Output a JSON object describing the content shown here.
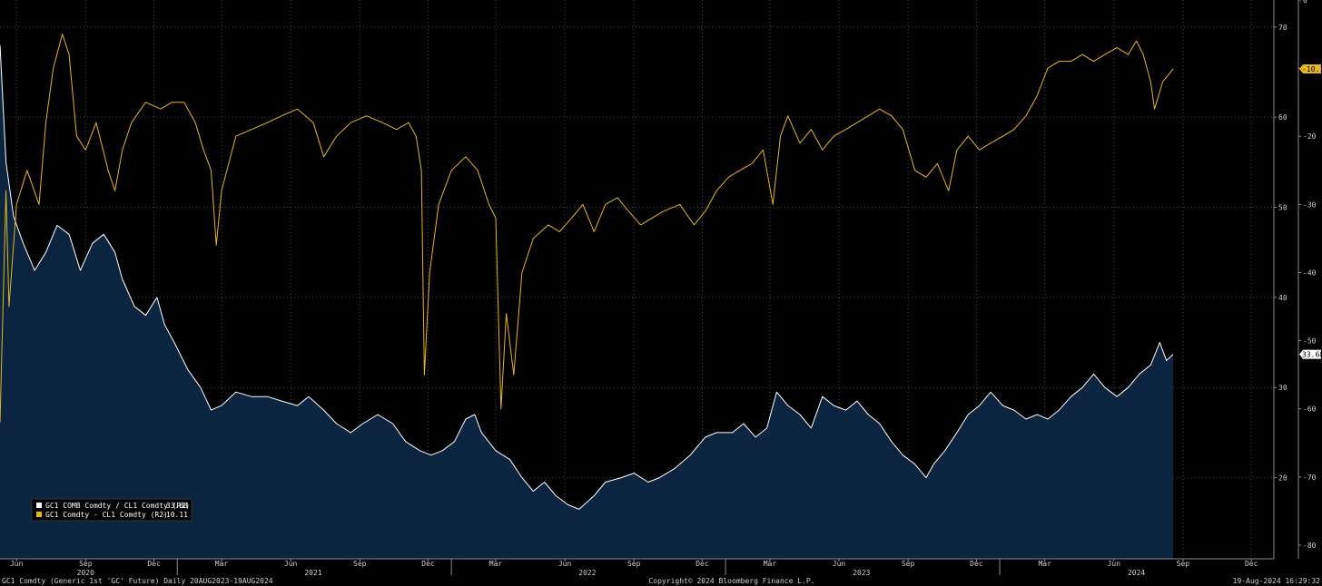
{
  "chart_data": {
    "type": "line",
    "x_range": [
      "2020-05-10",
      "2024-12-31"
    ],
    "x_month_ticks": [
      {
        "label": "Jun",
        "date": "2020-06-01"
      },
      {
        "label": "Sep",
        "date": "2020-09-01"
      },
      {
        "label": "Dec",
        "date": "2020-12-01"
      },
      {
        "label": "Mar",
        "date": "2021-03-01"
      },
      {
        "label": "Jun",
        "date": "2021-06-01"
      },
      {
        "label": "Sep",
        "date": "2021-09-01"
      },
      {
        "label": "Dec",
        "date": "2021-12-01"
      },
      {
        "label": "Mar",
        "date": "2022-03-01"
      },
      {
        "label": "Jun",
        "date": "2022-06-01"
      },
      {
        "label": "Sep",
        "date": "2022-09-01"
      },
      {
        "label": "Dec",
        "date": "2022-12-01"
      },
      {
        "label": "Mar",
        "date": "2023-03-01"
      },
      {
        "label": "Jun",
        "date": "2023-06-01"
      },
      {
        "label": "Sep",
        "date": "2023-09-01"
      },
      {
        "label": "Dec",
        "date": "2023-12-01"
      },
      {
        "label": "Mar",
        "date": "2024-03-01"
      },
      {
        "label": "Jun",
        "date": "2024-06-01"
      },
      {
        "label": "Sep",
        "date": "2024-09-01"
      },
      {
        "label": "Dec",
        "date": "2024-12-01"
      }
    ],
    "x_year_ticks": [
      {
        "label": "2020",
        "date": "2020-09-01"
      },
      {
        "label": "2021",
        "date": "2021-07-01"
      },
      {
        "label": "2022",
        "date": "2022-07-01"
      },
      {
        "label": "2023",
        "date": "2023-07-01"
      },
      {
        "label": "2024",
        "date": "2024-07-01"
      }
    ],
    "year_boundaries": [
      "2021-01-01",
      "2022-01-01",
      "2023-01-01",
      "2024-01-01"
    ],
    "axis_r1": {
      "range": [
        11,
        73
      ],
      "ticks": [
        20,
        30,
        40,
        50,
        60,
        70
      ]
    },
    "axis_r2": {
      "range": [
        -82,
        0
      ],
      "ticks": [
        0,
        -10,
        -20,
        -30,
        -40,
        -50,
        -60,
        -70,
        -80
      ]
    },
    "grid": true,
    "legend_position": "bottom-left",
    "series": [
      {
        "name": "GC1 COMB Comdty / CL1 Comdty (R1)",
        "last_value": "33.68",
        "axis": "R1",
        "style": "area",
        "color": "#ffffff",
        "fill": "#0b2440",
        "points": [
          [
            "2020-05-10",
            68
          ],
          [
            "2020-05-18",
            55
          ],
          [
            "2020-05-28",
            49
          ],
          [
            "2020-06-10",
            46
          ],
          [
            "2020-06-25",
            43
          ],
          [
            "2020-07-10",
            45
          ],
          [
            "2020-07-25",
            48
          ],
          [
            "2020-08-10",
            47
          ],
          [
            "2020-08-25",
            43
          ],
          [
            "2020-09-10",
            46
          ],
          [
            "2020-09-25",
            47
          ],
          [
            "2020-10-10",
            45
          ],
          [
            "2020-10-20",
            42
          ],
          [
            "2020-11-05",
            39
          ],
          [
            "2020-11-20",
            38
          ],
          [
            "2020-12-05",
            40
          ],
          [
            "2020-12-15",
            37
          ],
          [
            "2020-12-28",
            35
          ],
          [
            "2021-01-15",
            32
          ],
          [
            "2021-02-01",
            30
          ],
          [
            "2021-02-15",
            27.5
          ],
          [
            "2021-03-01",
            28
          ],
          [
            "2021-03-20",
            29.5
          ],
          [
            "2021-04-10",
            29
          ],
          [
            "2021-05-01",
            29
          ],
          [
            "2021-05-20",
            28.5
          ],
          [
            "2021-06-10",
            28
          ],
          [
            "2021-06-25",
            29
          ],
          [
            "2021-07-15",
            27.5
          ],
          [
            "2021-08-01",
            26
          ],
          [
            "2021-08-20",
            25
          ],
          [
            "2021-09-05",
            26
          ],
          [
            "2021-09-25",
            27
          ],
          [
            "2021-10-15",
            26
          ],
          [
            "2021-11-01",
            24
          ],
          [
            "2021-11-20",
            23
          ],
          [
            "2021-12-05",
            22.5
          ],
          [
            "2021-12-20",
            23
          ],
          [
            "2022-01-05",
            24
          ],
          [
            "2022-01-20",
            26.5
          ],
          [
            "2022-02-01",
            27
          ],
          [
            "2022-02-10",
            25
          ],
          [
            "2022-03-01",
            23
          ],
          [
            "2022-03-20",
            22
          ],
          [
            "2022-04-05",
            20
          ],
          [
            "2022-04-20",
            18.5
          ],
          [
            "2022-05-05",
            19.5
          ],
          [
            "2022-05-20",
            18
          ],
          [
            "2022-06-05",
            17
          ],
          [
            "2022-06-20",
            16.5
          ],
          [
            "2022-07-10",
            18
          ],
          [
            "2022-07-25",
            19.5
          ],
          [
            "2022-08-15",
            20
          ],
          [
            "2022-09-01",
            20.5
          ],
          [
            "2022-09-20",
            19.5
          ],
          [
            "2022-10-05",
            20
          ],
          [
            "2022-10-25",
            21
          ],
          [
            "2022-11-15",
            22.5
          ],
          [
            "2022-12-05",
            24.5
          ],
          [
            "2022-12-20",
            25
          ],
          [
            "2023-01-10",
            25
          ],
          [
            "2023-01-25",
            26
          ],
          [
            "2023-02-10",
            24.5
          ],
          [
            "2023-02-25",
            25.5
          ],
          [
            "2023-03-10",
            29.5
          ],
          [
            "2023-03-25",
            28
          ],
          [
            "2023-04-10",
            27
          ],
          [
            "2023-04-25",
            25.5
          ],
          [
            "2023-05-10",
            29
          ],
          [
            "2023-05-25",
            28
          ],
          [
            "2023-06-10",
            27.5
          ],
          [
            "2023-06-25",
            28.5
          ],
          [
            "2023-07-10",
            27
          ],
          [
            "2023-07-25",
            26
          ],
          [
            "2023-08-10",
            24
          ],
          [
            "2023-08-25",
            22.5
          ],
          [
            "2023-09-10",
            21.5
          ],
          [
            "2023-09-25",
            20
          ],
          [
            "2023-10-05",
            21.5
          ],
          [
            "2023-10-20",
            23
          ],
          [
            "2023-11-05",
            25
          ],
          [
            "2023-11-20",
            27
          ],
          [
            "2023-12-05",
            28
          ],
          [
            "2023-12-20",
            29.5
          ],
          [
            "2024-01-05",
            28
          ],
          [
            "2024-01-20",
            27.5
          ],
          [
            "2024-02-05",
            26.5
          ],
          [
            "2024-02-20",
            27
          ],
          [
            "2024-03-05",
            26.5
          ],
          [
            "2024-03-20",
            27.5
          ],
          [
            "2024-04-05",
            29
          ],
          [
            "2024-04-20",
            30
          ],
          [
            "2024-05-05",
            31.5
          ],
          [
            "2024-05-20",
            30
          ],
          [
            "2024-06-05",
            29
          ],
          [
            "2024-06-20",
            30
          ],
          [
            "2024-07-05",
            31.5
          ],
          [
            "2024-07-20",
            32.5
          ],
          [
            "2024-08-01",
            35
          ],
          [
            "2024-08-10",
            33
          ],
          [
            "2024-08-19",
            33.68
          ]
        ]
      },
      {
        "name": "GC1 Comdty - CL1 Comdty (R2)",
        "last_value": "-10.11",
        "axis": "R2",
        "style": "line",
        "color": "#e6b61e",
        "points": [
          [
            "2020-05-10",
            -62
          ],
          [
            "2020-05-14",
            -45
          ],
          [
            "2020-05-18",
            -28
          ],
          [
            "2020-05-22",
            -45
          ],
          [
            "2020-06-01",
            -30
          ],
          [
            "2020-06-15",
            -25
          ],
          [
            "2020-07-01",
            -30
          ],
          [
            "2020-07-10",
            -18
          ],
          [
            "2020-07-20",
            -10
          ],
          [
            "2020-08-01",
            -5
          ],
          [
            "2020-08-10",
            -8
          ],
          [
            "2020-08-20",
            -20
          ],
          [
            "2020-09-01",
            -22
          ],
          [
            "2020-09-15",
            -18
          ],
          [
            "2020-10-01",
            -25
          ],
          [
            "2020-10-10",
            -28
          ],
          [
            "2020-10-20",
            -22
          ],
          [
            "2020-11-01",
            -18
          ],
          [
            "2020-11-20",
            -15
          ],
          [
            "2020-12-10",
            -16
          ],
          [
            "2020-12-25",
            -15
          ],
          [
            "2021-01-10",
            -15
          ],
          [
            "2021-01-25",
            -18
          ],
          [
            "2021-02-05",
            -22
          ],
          [
            "2021-02-15",
            -25
          ],
          [
            "2021-02-22",
            -36
          ],
          [
            "2021-03-01",
            -28
          ],
          [
            "2021-03-20",
            -20
          ],
          [
            "2021-04-10",
            -19
          ],
          [
            "2021-05-01",
            -18
          ],
          [
            "2021-05-20",
            -17
          ],
          [
            "2021-06-10",
            -16
          ],
          [
            "2021-07-01",
            -18
          ],
          [
            "2021-07-15",
            -23
          ],
          [
            "2021-08-01",
            -20
          ],
          [
            "2021-08-20",
            -18
          ],
          [
            "2021-09-10",
            -17
          ],
          [
            "2021-10-01",
            -18
          ],
          [
            "2021-10-20",
            -19
          ],
          [
            "2021-11-05",
            -18
          ],
          [
            "2021-11-15",
            -20
          ],
          [
            "2021-11-22",
            -25
          ],
          [
            "2021-11-26",
            -55
          ],
          [
            "2021-12-03",
            -40
          ],
          [
            "2021-12-15",
            -30
          ],
          [
            "2022-01-01",
            -25
          ],
          [
            "2022-01-20",
            -23
          ],
          [
            "2022-02-05",
            -25
          ],
          [
            "2022-02-20",
            -30
          ],
          [
            "2022-03-01",
            -32
          ],
          [
            "2022-03-08",
            -60
          ],
          [
            "2022-03-15",
            -46
          ],
          [
            "2022-03-25",
            -55
          ],
          [
            "2022-04-05",
            -40
          ],
          [
            "2022-04-20",
            -35
          ],
          [
            "2022-05-10",
            -33
          ],
          [
            "2022-05-25",
            -34
          ],
          [
            "2022-06-10",
            -32
          ],
          [
            "2022-06-25",
            -30
          ],
          [
            "2022-07-10",
            -34
          ],
          [
            "2022-07-25",
            -30
          ],
          [
            "2022-08-10",
            -29
          ],
          [
            "2022-08-25",
            -31
          ],
          [
            "2022-09-10",
            -33
          ],
          [
            "2022-09-25",
            -32
          ],
          [
            "2022-10-10",
            -31
          ],
          [
            "2022-11-01",
            -30
          ],
          [
            "2022-11-20",
            -33
          ],
          [
            "2022-12-05",
            -31
          ],
          [
            "2022-12-20",
            -28
          ],
          [
            "2023-01-05",
            -26
          ],
          [
            "2023-01-20",
            -25
          ],
          [
            "2023-02-05",
            -24
          ],
          [
            "2023-02-20",
            -22
          ],
          [
            "2023-03-05",
            -30
          ],
          [
            "2023-03-15",
            -20
          ],
          [
            "2023-03-25",
            -17
          ],
          [
            "2023-04-10",
            -21
          ],
          [
            "2023-04-25",
            -19
          ],
          [
            "2023-05-10",
            -22
          ],
          [
            "2023-05-25",
            -20
          ],
          [
            "2023-06-10",
            -19
          ],
          [
            "2023-06-25",
            -18
          ],
          [
            "2023-07-10",
            -17
          ],
          [
            "2023-07-25",
            -16
          ],
          [
            "2023-08-10",
            -17
          ],
          [
            "2023-08-25",
            -19
          ],
          [
            "2023-09-10",
            -25
          ],
          [
            "2023-09-25",
            -26
          ],
          [
            "2023-10-10",
            -24
          ],
          [
            "2023-10-25",
            -28
          ],
          [
            "2023-11-05",
            -22
          ],
          [
            "2023-11-20",
            -20
          ],
          [
            "2023-12-05",
            -22
          ],
          [
            "2023-12-20",
            -21
          ],
          [
            "2024-01-05",
            -20
          ],
          [
            "2024-01-20",
            -19
          ],
          [
            "2024-02-05",
            -17
          ],
          [
            "2024-02-20",
            -14
          ],
          [
            "2024-03-05",
            -10
          ],
          [
            "2024-03-20",
            -9
          ],
          [
            "2024-04-05",
            -9
          ],
          [
            "2024-04-20",
            -8
          ],
          [
            "2024-05-05",
            -9
          ],
          [
            "2024-05-20",
            -8
          ],
          [
            "2024-06-05",
            -7
          ],
          [
            "2024-06-20",
            -8
          ],
          [
            "2024-07-01",
            -6
          ],
          [
            "2024-07-10",
            -8
          ],
          [
            "2024-07-20",
            -12
          ],
          [
            "2024-07-25",
            -16
          ],
          [
            "2024-08-05",
            -12
          ],
          [
            "2024-08-19",
            -10.11
          ]
        ]
      }
    ]
  },
  "footer": {
    "left": "GC1 Comdty (Generic 1st 'GC' Future)  Daily 20AUG2023-19AUG2024",
    "center": "Copyright© 2024 Bloomberg Finance L.P.",
    "right": "19-Aug-2024 16:29:32"
  },
  "colors": {
    "background": "#000000",
    "grid": "#4a4a4a",
    "r1_line": "#ffffff",
    "r1_fill": "#0b2440",
    "r2_line": "#e6b61e"
  }
}
